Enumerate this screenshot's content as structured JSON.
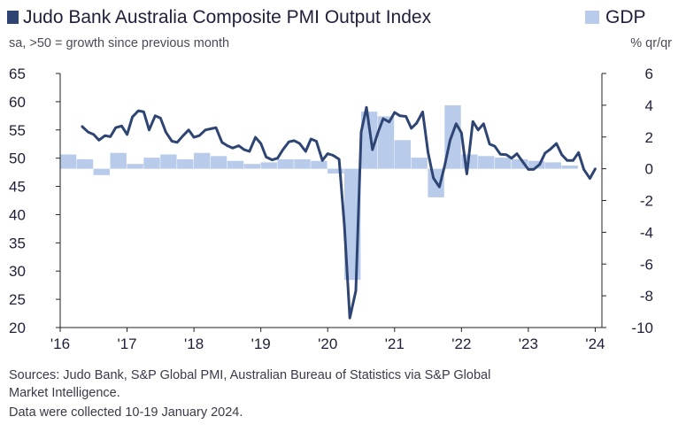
{
  "header": {
    "title": "Judo Bank Australia Composite PMI Output Index",
    "subtitle": "sa, >50 = growth since previous month",
    "gdp_legend": "GDP",
    "right_axis_unit": "% qr/qr"
  },
  "footer": {
    "line1": "Sources: Judo Bank, S&P Global PMI, Australian Bureau of Statistics via S&P Global",
    "line2": "Market Intelligence.",
    "line3": "Data were collected 10-19 January 2024."
  },
  "colors": {
    "pmi_line": "#2e4573",
    "gdp_bars": "#b9cbea",
    "axis": "#222222"
  },
  "chart_data": {
    "type": "line",
    "left_axis": {
      "ylim": [
        20,
        65
      ],
      "ticks": [
        20,
        25,
        30,
        35,
        40,
        45,
        50,
        55,
        60,
        65
      ]
    },
    "right_axis": {
      "ylim": [
        -10,
        6
      ],
      "ticks": [
        -10,
        -8,
        -6,
        -4,
        -2,
        0,
        2,
        4,
        6
      ]
    },
    "x_axis": {
      "xlim": [
        2016.0,
        2024.1
      ],
      "ticks": [
        2016,
        2017,
        2018,
        2019,
        2020,
        2021,
        2022,
        2023,
        2024
      ],
      "tick_labels": [
        "'16",
        "'17",
        "'18",
        "'19",
        "'20",
        "'21",
        "'22",
        "'23",
        "'24"
      ]
    },
    "grid": false,
    "series": [
      {
        "name": "Judo Bank Australia Composite PMI Output Index",
        "axis": "left",
        "x": [
          2016.33,
          2016.42,
          2016.5,
          2016.58,
          2016.67,
          2016.75,
          2016.83,
          2016.92,
          2017.0,
          2017.08,
          2017.17,
          2017.25,
          2017.33,
          2017.42,
          2017.5,
          2017.58,
          2017.67,
          2017.75,
          2017.83,
          2017.92,
          2018.0,
          2018.08,
          2018.17,
          2018.25,
          2018.33,
          2018.42,
          2018.5,
          2018.58,
          2018.67,
          2018.75,
          2018.83,
          2018.92,
          2019.0,
          2019.08,
          2019.17,
          2019.25,
          2019.33,
          2019.42,
          2019.5,
          2019.58,
          2019.67,
          2019.75,
          2019.83,
          2019.92,
          2020.0,
          2020.08,
          2020.17,
          2020.25,
          2020.33,
          2020.42,
          2020.5,
          2020.58,
          2020.67,
          2020.75,
          2020.83,
          2020.92,
          2021.0,
          2021.08,
          2021.17,
          2021.25,
          2021.33,
          2021.42,
          2021.5,
          2021.58,
          2021.67,
          2021.75,
          2021.83,
          2021.92,
          2022.0,
          2022.08,
          2022.17,
          2022.25,
          2022.33,
          2022.42,
          2022.5,
          2022.58,
          2022.67,
          2022.75,
          2022.83,
          2022.92,
          2023.0,
          2023.08,
          2023.17,
          2023.25,
          2023.33,
          2023.42,
          2023.5,
          2023.58,
          2023.67,
          2023.75,
          2023.83,
          2023.92,
          2024.0
        ],
        "values": [
          55.6,
          54.6,
          54.2,
          53.2,
          54.0,
          53.8,
          55.4,
          55.7,
          54.2,
          57.3,
          58.4,
          58.2,
          55.0,
          57.5,
          57.1,
          54.6,
          53.0,
          52.8,
          53.9,
          55.0,
          53.7,
          54.0,
          55.0,
          55.2,
          55.4,
          52.8,
          52.2,
          51.8,
          52.2,
          51.5,
          51.2,
          53.7,
          52.6,
          50.2,
          49.7,
          50.0,
          51.5,
          52.9,
          53.1,
          52.6,
          51.2,
          53.4,
          53.0,
          49.6,
          50.8,
          50.5,
          49.8,
          38.0,
          21.7,
          26.5,
          54.6,
          59.0,
          51.5,
          54.5,
          57.0,
          56.4,
          58.1,
          57.5,
          57.4,
          55.3,
          56.2,
          58.2,
          51.0,
          46.5,
          44.9,
          48.7,
          53.2,
          56.1,
          54.5,
          47.2,
          56.5,
          55.0,
          56.1,
          52.5,
          52.1,
          50.7,
          50.6,
          50.0,
          50.8,
          49.3,
          48.0,
          48.0,
          48.9,
          50.9,
          51.6,
          52.6,
          50.6,
          49.6,
          49.6,
          51.0,
          48.0,
          46.4,
          48.1
        ]
      },
      {
        "name": "GDP",
        "axis": "right",
        "type": "bar",
        "x": [
          2016.12,
          2016.37,
          2016.62,
          2016.87,
          2017.12,
          2017.37,
          2017.62,
          2017.87,
          2018.12,
          2018.37,
          2018.62,
          2018.87,
          2019.12,
          2019.37,
          2019.62,
          2019.87,
          2020.12,
          2020.37,
          2020.62,
          2020.87,
          2021.12,
          2021.37,
          2021.62,
          2021.87,
          2022.12,
          2022.37,
          2022.62,
          2022.87,
          2023.12,
          2023.37,
          2023.62
        ],
        "values": [
          0.9,
          0.6,
          -0.4,
          1.0,
          0.3,
          0.7,
          0.9,
          0.6,
          1.0,
          0.8,
          0.5,
          0.3,
          0.4,
          0.6,
          0.6,
          0.5,
          -0.3,
          -7.0,
          3.6,
          3.3,
          1.8,
          0.7,
          -1.8,
          4.0,
          0.9,
          0.8,
          0.7,
          0.6,
          0.5,
          0.4,
          0.2
        ]
      }
    ]
  }
}
